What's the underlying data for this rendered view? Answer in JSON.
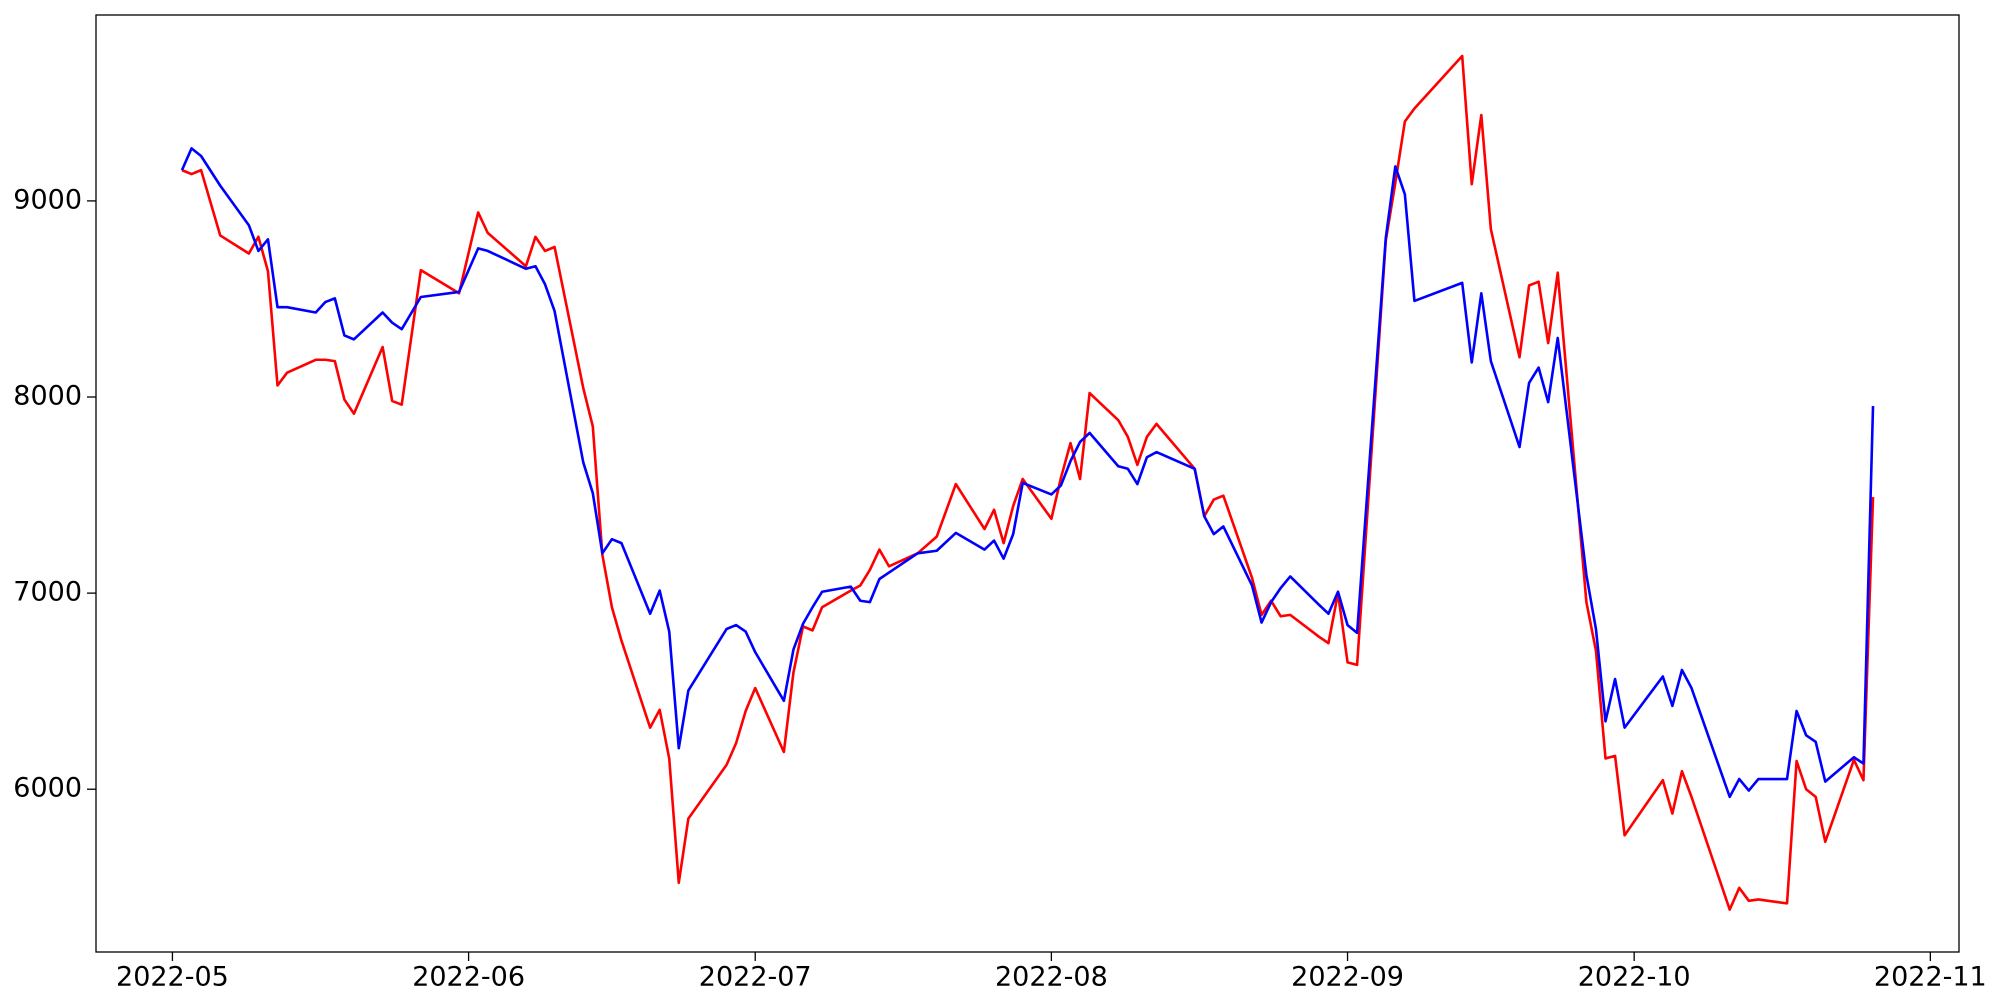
{
  "chart_data": {
    "type": "line",
    "x": [
      "2022-05-02",
      "2022-05-03",
      "2022-05-04",
      "2022-05-06",
      "2022-05-09",
      "2022-05-10",
      "2022-05-11",
      "2022-05-12",
      "2022-05-13",
      "2022-05-16",
      "2022-05-17",
      "2022-05-18",
      "2022-05-19",
      "2022-05-20",
      "2022-05-23",
      "2022-05-24",
      "2022-05-25",
      "2022-05-27",
      "2022-05-31",
      "2022-06-02",
      "2022-06-03",
      "2022-06-07",
      "2022-06-08",
      "2022-06-09",
      "2022-06-10",
      "2022-06-13",
      "2022-06-14",
      "2022-06-15",
      "2022-06-16",
      "2022-06-17",
      "2022-06-20",
      "2022-06-21",
      "2022-06-22",
      "2022-06-23",
      "2022-06-24",
      "2022-06-28",
      "2022-06-29",
      "2022-06-30",
      "2022-07-01",
      "2022-07-04",
      "2022-07-05",
      "2022-07-06",
      "2022-07-07",
      "2022-07-08",
      "2022-07-11",
      "2022-07-12",
      "2022-07-13",
      "2022-07-14",
      "2022-07-15",
      "2022-07-18",
      "2022-07-20",
      "2022-07-22",
      "2022-07-25",
      "2022-07-26",
      "2022-07-27",
      "2022-07-28",
      "2022-07-29",
      "2022-08-01",
      "2022-08-02",
      "2022-08-03",
      "2022-08-04",
      "2022-08-05",
      "2022-08-08",
      "2022-08-09",
      "2022-08-10",
      "2022-08-11",
      "2022-08-12",
      "2022-08-16",
      "2022-08-17",
      "2022-08-18",
      "2022-08-19",
      "2022-08-22",
      "2022-08-23",
      "2022-08-24",
      "2022-08-25",
      "2022-08-26",
      "2022-08-29",
      "2022-08-30",
      "2022-08-31",
      "2022-09-01",
      "2022-09-02",
      "2022-09-05",
      "2022-09-06",
      "2022-09-07",
      "2022-09-08",
      "2022-09-13",
      "2022-09-14",
      "2022-09-15",
      "2022-09-16",
      "2022-09-19",
      "2022-09-20",
      "2022-09-21",
      "2022-09-22",
      "2022-09-23",
      "2022-09-26",
      "2022-09-27",
      "2022-09-28",
      "2022-09-29",
      "2022-09-30",
      "2022-10-04",
      "2022-10-05",
      "2022-10-06",
      "2022-10-07",
      "2022-10-11",
      "2022-10-12",
      "2022-10-13",
      "2022-10-14",
      "2022-10-17",
      "2022-10-18",
      "2022-10-19",
      "2022-10-20",
      "2022-10-21",
      "2022-10-24",
      "2022-10-25",
      "2022-10-26"
    ],
    "series": [
      {
        "color": "#ff0000",
        "values": [
          9157,
          9137,
          9157,
          8824,
          8732,
          8817,
          8641,
          8059,
          8124,
          8190,
          8190,
          8183,
          7987,
          7915,
          8255,
          7980,
          7961,
          8647,
          8529,
          8941,
          8837,
          8667,
          8817,
          8745,
          8765,
          8046,
          7850,
          7196,
          6928,
          6758,
          6314,
          6405,
          6157,
          5523,
          5850,
          6124,
          6235,
          6399,
          6516,
          6190,
          6595,
          6830,
          6810,
          6928,
          7013,
          7039,
          7118,
          7222,
          7137,
          7203,
          7288,
          7556,
          7327,
          7425,
          7255,
          7444,
          7582,
          7379,
          7588,
          7765,
          7582,
          8020,
          7882,
          7797,
          7654,
          7797,
          7863,
          7634,
          7392,
          7477,
          7497,
          7078,
          6889,
          6961,
          6882,
          6889,
          6778,
          6745,
          7000,
          6647,
          6634,
          8797,
          9092,
          9405,
          9471,
          9739,
          9085,
          9438,
          8856,
          8203,
          8569,
          8588,
          8275,
          8634,
          6954,
          6706,
          6157,
          6170,
          5765,
          6046,
          5876,
          6092,
          5961,
          5386,
          5497,
          5431,
          5438,
          5418,
          6144,
          6000,
          5961,
          5732,
          6150,
          6046,
          7490
        ]
      },
      {
        "color": "#0000ff",
        "values": [
          9157,
          9268,
          9229,
          9078,
          8876,
          8745,
          8804,
          8458,
          8458,
          8431,
          8484,
          8503,
          8314,
          8294,
          8431,
          8379,
          8346,
          8510,
          8536,
          8758,
          8745,
          8654,
          8667,
          8575,
          8438,
          7667,
          7510,
          7203,
          7275,
          7255,
          6895,
          7013,
          6804,
          6209,
          6503,
          6817,
          6837,
          6804,
          6699,
          6451,
          6712,
          6843,
          6928,
          7007,
          7033,
          6961,
          6954,
          7072,
          7105,
          7203,
          7216,
          7307,
          7222,
          7268,
          7176,
          7301,
          7562,
          7503,
          7549,
          7673,
          7771,
          7817,
          7647,
          7634,
          7556,
          7693,
          7719,
          7634,
          7392,
          7301,
          7340,
          7039,
          6850,
          6954,
          7026,
          7085,
          6941,
          6895,
          7007,
          6837,
          6797,
          8810,
          9176,
          9033,
          8490,
          8582,
          8176,
          8529,
          8183,
          7745,
          8072,
          8150,
          7974,
          8301,
          7092,
          6817,
          6346,
          6562,
          6314,
          6575,
          6425,
          6608,
          6516,
          5961,
          6052,
          5993,
          6052,
          6052,
          6399,
          6275,
          6242,
          6039,
          6163,
          6131,
          7954
        ]
      }
    ],
    "xlim": [
      "2022-04-23",
      "2022-11-04"
    ],
    "xticks": [
      {
        "value": "2022-05-01",
        "label": "2022-05"
      },
      {
        "value": "2022-06-01",
        "label": "2022-06"
      },
      {
        "value": "2022-07-01",
        "label": "2022-07"
      },
      {
        "value": "2022-08-01",
        "label": "2022-08"
      },
      {
        "value": "2022-09-01",
        "label": "2022-09"
      },
      {
        "value": "2022-10-01",
        "label": "2022-10"
      },
      {
        "value": "2022-11-01",
        "label": "2022-11"
      }
    ],
    "ylim": [
      5170,
      9948
    ],
    "yticks": [
      6000,
      7000,
      8000,
      9000
    ]
  }
}
